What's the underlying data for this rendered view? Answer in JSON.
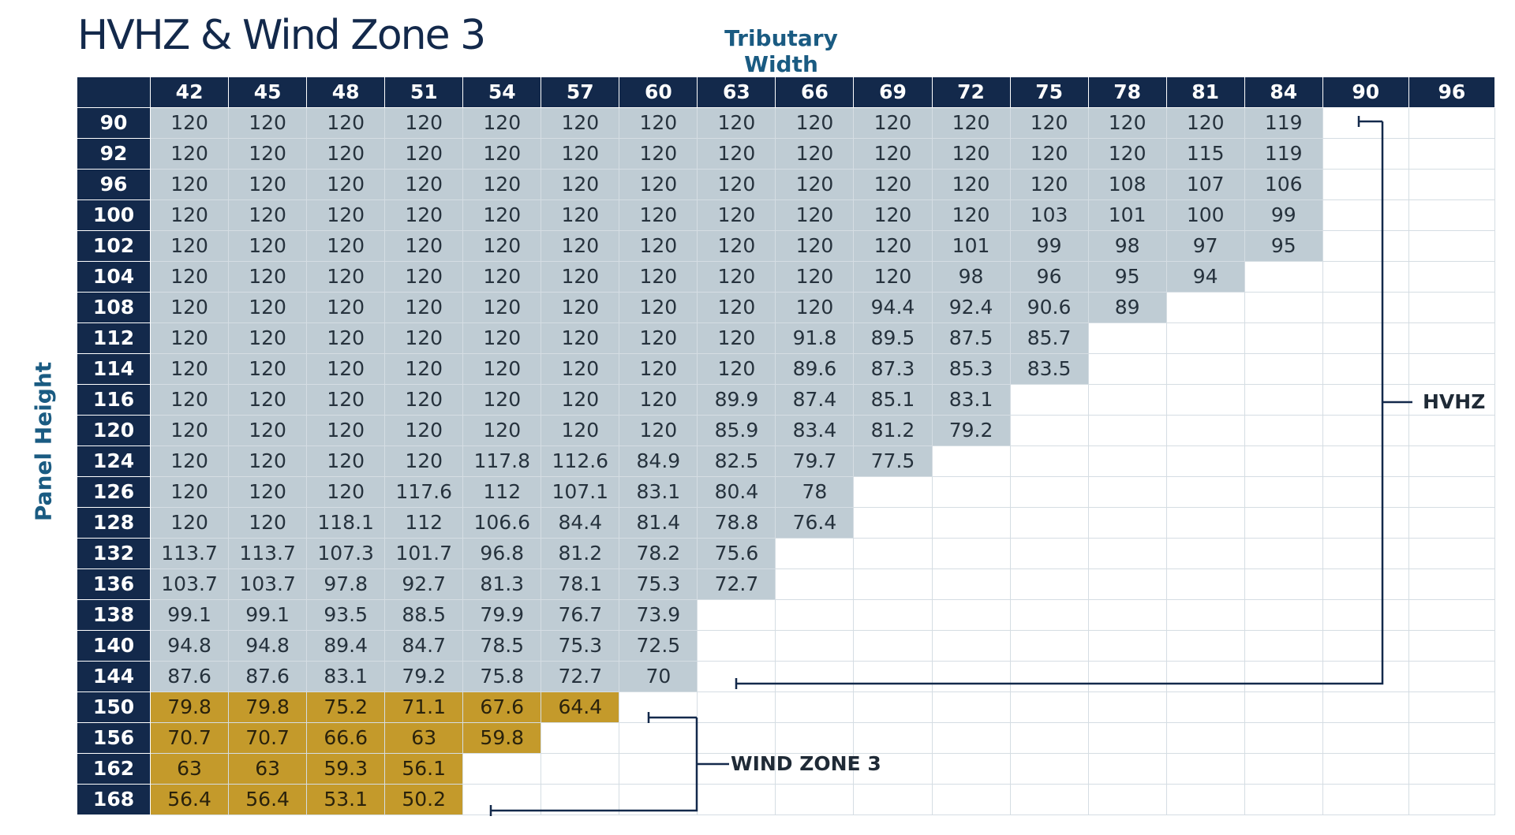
{
  "title": "HVHZ & Wind Zone 3",
  "column_axis_label": "Tributary Width",
  "row_axis_label": "Panel Height",
  "columns": [
    "42",
    "45",
    "48",
    "51",
    "54",
    "57",
    "60",
    "63",
    "66",
    "69",
    "72",
    "75",
    "78",
    "81",
    "84",
    "90",
    "96"
  ],
  "rows": [
    {
      "height": "90",
      "values": [
        "120",
        "120",
        "120",
        "120",
        "120",
        "120",
        "120",
        "120",
        "120",
        "120",
        "120",
        "120",
        "120",
        "120",
        "119"
      ]
    },
    {
      "height": "92",
      "values": [
        "120",
        "120",
        "120",
        "120",
        "120",
        "120",
        "120",
        "120",
        "120",
        "120",
        "120",
        "120",
        "120",
        "115",
        "119"
      ]
    },
    {
      "height": "96",
      "values": [
        "120",
        "120",
        "120",
        "120",
        "120",
        "120",
        "120",
        "120",
        "120",
        "120",
        "120",
        "120",
        "108",
        "107",
        "106"
      ]
    },
    {
      "height": "100",
      "values": [
        "120",
        "120",
        "120",
        "120",
        "120",
        "120",
        "120",
        "120",
        "120",
        "120",
        "120",
        "103",
        "101",
        "100",
        "99"
      ]
    },
    {
      "height": "102",
      "values": [
        "120",
        "120",
        "120",
        "120",
        "120",
        "120",
        "120",
        "120",
        "120",
        "120",
        "101",
        "99",
        "98",
        "97",
        "95"
      ]
    },
    {
      "height": "104",
      "values": [
        "120",
        "120",
        "120",
        "120",
        "120",
        "120",
        "120",
        "120",
        "120",
        "120",
        "98",
        "96",
        "95",
        "94"
      ]
    },
    {
      "height": "108",
      "values": [
        "120",
        "120",
        "120",
        "120",
        "120",
        "120",
        "120",
        "120",
        "120",
        "94.4",
        "92.4",
        "90.6",
        "89"
      ]
    },
    {
      "height": "112",
      "values": [
        "120",
        "120",
        "120",
        "120",
        "120",
        "120",
        "120",
        "120",
        "91.8",
        "89.5",
        "87.5",
        "85.7"
      ]
    },
    {
      "height": "114",
      "values": [
        "120",
        "120",
        "120",
        "120",
        "120",
        "120",
        "120",
        "120",
        "89.6",
        "87.3",
        "85.3",
        "83.5"
      ]
    },
    {
      "height": "116",
      "values": [
        "120",
        "120",
        "120",
        "120",
        "120",
        "120",
        "120",
        "89.9",
        "87.4",
        "85.1",
        "83.1"
      ]
    },
    {
      "height": "120",
      "values": [
        "120",
        "120",
        "120",
        "120",
        "120",
        "120",
        "120",
        "85.9",
        "83.4",
        "81.2",
        "79.2"
      ]
    },
    {
      "height": "124",
      "values": [
        "120",
        "120",
        "120",
        "120",
        "117.8",
        "112.6",
        "84.9",
        "82.5",
        "79.7",
        "77.5"
      ]
    },
    {
      "height": "126",
      "values": [
        "120",
        "120",
        "120",
        "117.6",
        "112",
        "107.1",
        "83.1",
        "80.4",
        "78"
      ]
    },
    {
      "height": "128",
      "values": [
        "120",
        "120",
        "118.1",
        "112",
        "106.6",
        "84.4",
        "81.4",
        "78.8",
        "76.4"
      ]
    },
    {
      "height": "132",
      "values": [
        "113.7",
        "113.7",
        "107.3",
        "101.7",
        "96.8",
        "81.2",
        "78.2",
        "75.6"
      ]
    },
    {
      "height": "136",
      "values": [
        "103.7",
        "103.7",
        "97.8",
        "92.7",
        "81.3",
        "78.1",
        "75.3",
        "72.7"
      ]
    },
    {
      "height": "138",
      "values": [
        "99.1",
        "99.1",
        "93.5",
        "88.5",
        "79.9",
        "76.7",
        "73.9"
      ]
    },
    {
      "height": "140",
      "values": [
        "94.8",
        "94.8",
        "89.4",
        "84.7",
        "78.5",
        "75.3",
        "72.5"
      ]
    },
    {
      "height": "144",
      "values": [
        "87.6",
        "87.6",
        "83.1",
        "79.2",
        "75.8",
        "72.7",
        "70"
      ]
    },
    {
      "height": "150",
      "zone": "wz3",
      "values": [
        "79.8",
        "79.8",
        "75.2",
        "71.1",
        "67.6",
        "64.4"
      ]
    },
    {
      "height": "156",
      "zone": "wz3",
      "values": [
        "70.7",
        "70.7",
        "66.6",
        "63",
        "59.8"
      ]
    },
    {
      "height": "162",
      "zone": "wz3",
      "values": [
        "63",
        "63",
        "59.3",
        "56.1"
      ]
    },
    {
      "height": "168",
      "zone": "wz3",
      "values": [
        "56.4",
        "56.4",
        "53.1",
        "50.2"
      ]
    }
  ],
  "legend": {
    "hvhz": "HVHZ",
    "wind_zone_3": "WIND ZONE 3"
  },
  "colors": {
    "header_bg": "#13294b",
    "hvhz_cell": "#bfccd4",
    "wind_zone_3_cell": "#c49a2b",
    "axis_label": "#1a5b82"
  }
}
